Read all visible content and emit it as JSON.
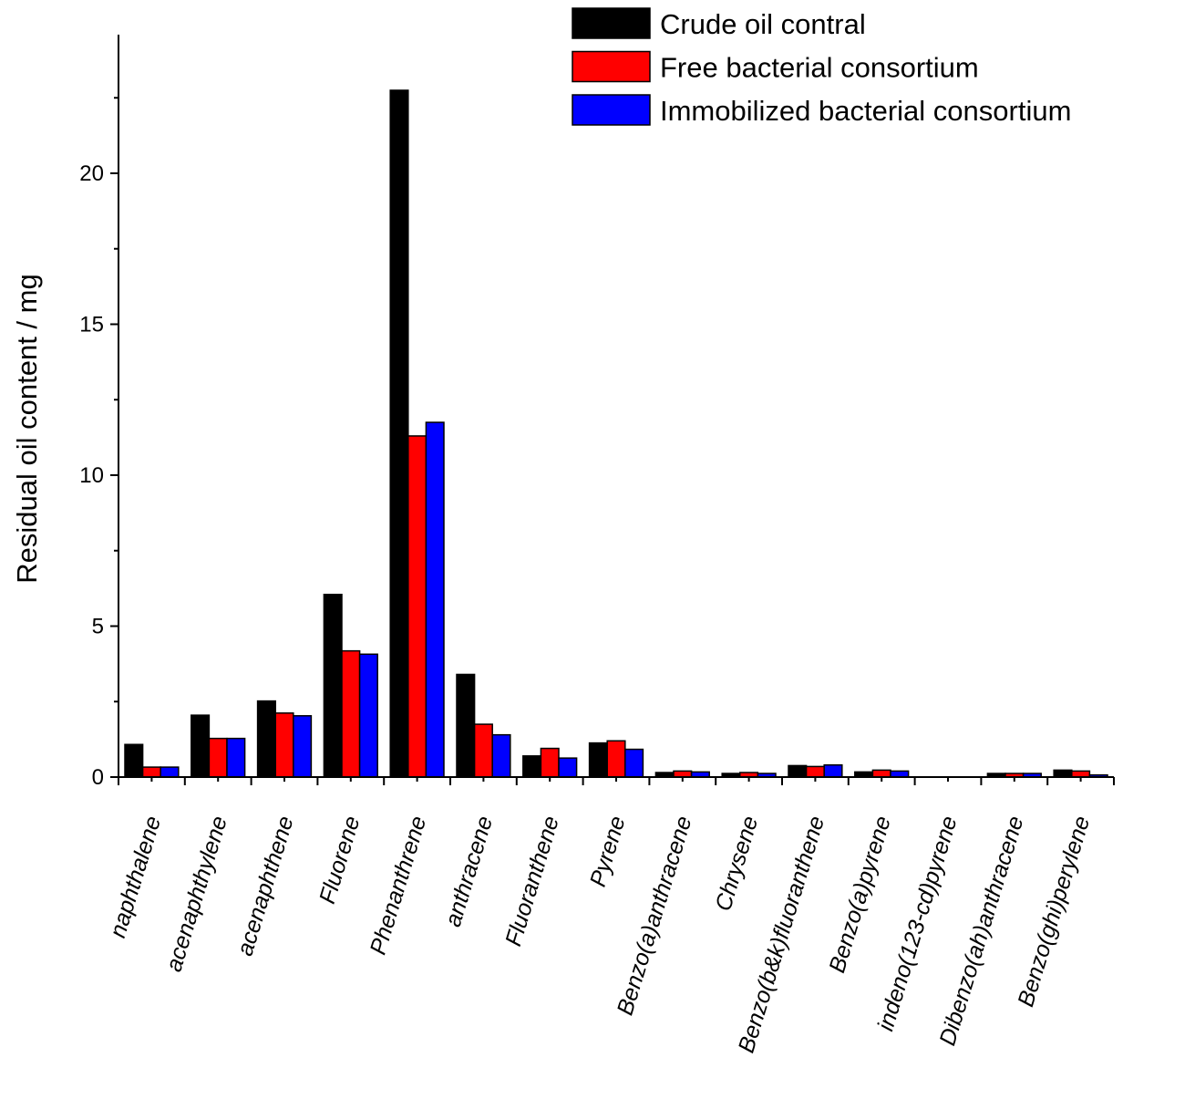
{
  "chart_data": {
    "type": "bar",
    "title": "",
    "xlabel": "",
    "ylabel": "Residual oil content / mg",
    "ylim": [
      0,
      24
    ],
    "yticks": [
      0,
      5,
      10,
      15,
      20
    ],
    "grid": false,
    "legend_position": "top-right",
    "categories": [
      "naphthalene",
      "acenaphthylene",
      "acenaphthene",
      "Fluorene",
      "Phenanthrene",
      "anthracene",
      "Fluoranthene",
      "Pyrene",
      "Benzo(a)anthracene",
      "Chrysene",
      "Benzo(b&k)fluoranthene",
      "Benzo(a)pyrene",
      "indeno(123-cd)pyrene",
      "Dibenzo(ah)anthracene",
      "Benzo(ghi)perylene"
    ],
    "series": [
      {
        "name": "Crude oil contral",
        "color": "#000000",
        "values": [
          1.08,
          2.05,
          2.52,
          6.05,
          22.75,
          3.4,
          0.7,
          1.13,
          0.15,
          0.12,
          0.38,
          0.17,
          0.0,
          0.12,
          0.23
        ]
      },
      {
        "name": "Free bacterial consortium",
        "color": "#ff0000",
        "values": [
          0.33,
          1.28,
          2.12,
          4.18,
          11.3,
          1.75,
          0.95,
          1.2,
          0.2,
          0.15,
          0.35,
          0.23,
          0.0,
          0.12,
          0.2
        ]
      },
      {
        "name": "Immobilized bacterial consortium",
        "color": "#0000ff",
        "values": [
          0.33,
          1.28,
          2.03,
          4.07,
          11.75,
          1.4,
          0.63,
          0.92,
          0.17,
          0.12,
          0.4,
          0.2,
          0.0,
          0.12,
          0.07
        ]
      }
    ]
  }
}
